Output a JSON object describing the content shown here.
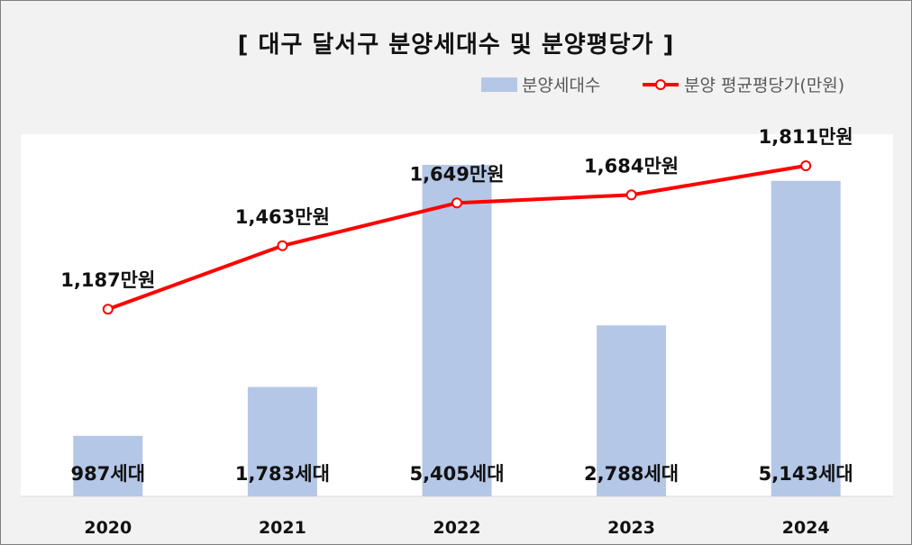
{
  "chart_data": {
    "type": "bar",
    "title": "[ 대구 달서구 분양세대수 및 분양평당가 ]",
    "categories": [
      "2020",
      "2021",
      "2022",
      "2023",
      "2024"
    ],
    "series": [
      {
        "name": "분양세대수",
        "type": "bar",
        "color": "#b4c7e7",
        "values": [
          987,
          1783,
          5405,
          2788,
          5143
        ],
        "labels": [
          "987세대",
          "1,783세대",
          "5,405세대",
          "2,788세대",
          "5,143세대"
        ]
      },
      {
        "name": "분양 평균평당가(만원)",
        "type": "line",
        "color": "#ff0000",
        "values": [
          1187,
          1463,
          1649,
          1684,
          1811
        ],
        "labels": [
          "1,187만원",
          "1,463만원",
          "1,649만원",
          "1,684만원",
          "1,811만원"
        ]
      }
    ],
    "bar_axis_range": [
      0,
      6000
    ],
    "line_axis_range": [
      0,
      2000
    ],
    "legend_position": "top-right",
    "grid": false
  }
}
